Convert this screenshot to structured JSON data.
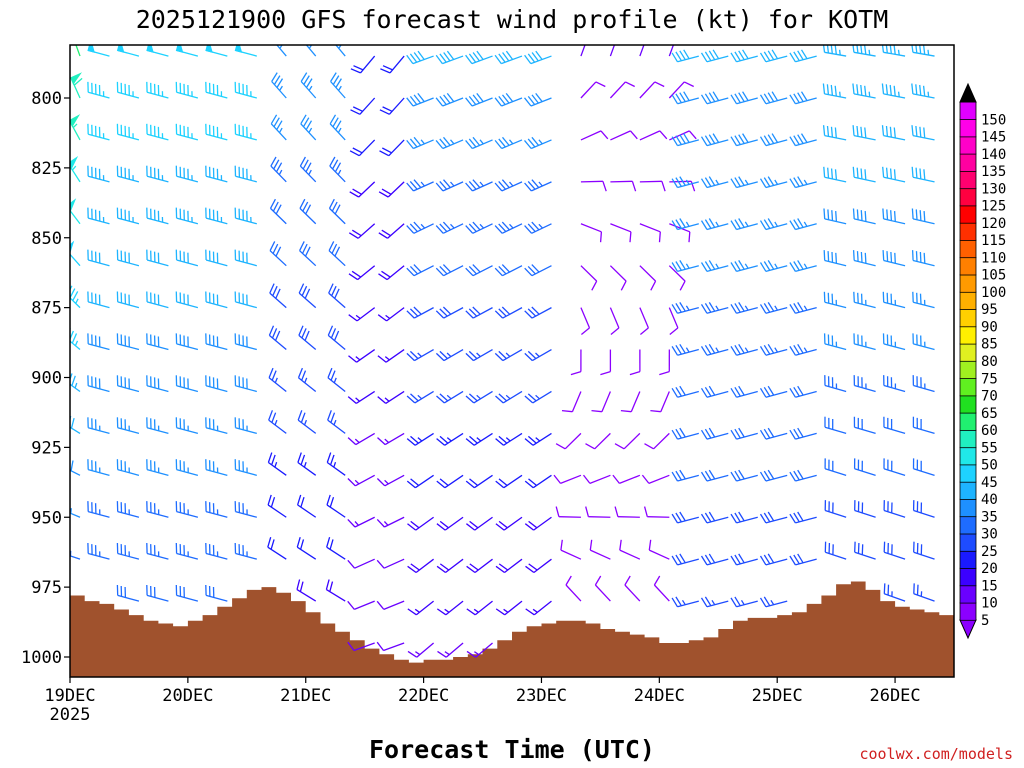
{
  "chart_data": {
    "type": "wind_barb_time_height",
    "title": "2025121900 GFS forecast wind profile (kt) for KOTM",
    "xlabel": "Forecast Time (UTC)",
    "ylabel": "",
    "credit": "coolwx.com/models",
    "x_ticks": [
      {
        "label": "19DEC",
        "sub": "2025",
        "hour": 0
      },
      {
        "label": "20DEC",
        "sub": "",
        "hour": 24
      },
      {
        "label": "21DEC",
        "sub": "",
        "hour": 48
      },
      {
        "label": "22DEC",
        "sub": "",
        "hour": 72
      },
      {
        "label": "23DEC",
        "sub": "",
        "hour": 96
      },
      {
        "label": "24DEC",
        "sub": "",
        "hour": 120
      },
      {
        "label": "25DEC",
        "sub": "",
        "hour": 144
      },
      {
        "label": "26DEC",
        "sub": "",
        "hour": 168
      }
    ],
    "xlim_hours": [
      0,
      180
    ],
    "y_ticks": [
      "800",
      "825",
      "850",
      "875",
      "900",
      "925",
      "950",
      "975",
      "1000"
    ],
    "ylim_hpa": [
      1007,
      782
    ],
    "pressure_levels": [
      785,
      800,
      815,
      830,
      845,
      860,
      875,
      890,
      905,
      920,
      935,
      950,
      965,
      980,
      995
    ],
    "barb_times_hours": [
      0,
      6,
      12,
      18,
      24,
      30,
      36,
      42,
      48,
      54,
      60,
      66,
      72,
      78,
      84,
      90,
      96,
      102,
      108,
      114,
      120,
      126,
      132,
      138,
      144,
      150,
      156,
      162,
      168,
      174
    ],
    "surface_pressure": {
      "hours": [
        0,
        3,
        6,
        9,
        12,
        15,
        18,
        21,
        24,
        27,
        30,
        33,
        36,
        39,
        42,
        45,
        48,
        51,
        54,
        57,
        60,
        63,
        66,
        69,
        72,
        75,
        78,
        81,
        84,
        87,
        90,
        93,
        96,
        99,
        102,
        105,
        108,
        111,
        114,
        117,
        120,
        123,
        126,
        129,
        132,
        135,
        138,
        141,
        144,
        147,
        150,
        153,
        156,
        159,
        162,
        165,
        168,
        171,
        174,
        177,
        180
      ],
      "hpa": [
        978,
        980,
        981,
        983,
        985,
        987,
        988,
        989,
        987,
        985,
        982,
        979,
        976,
        975,
        977,
        980,
        984,
        988,
        991,
        994,
        997,
        999,
        1001,
        1002,
        1001,
        1001,
        1000,
        999,
        997,
        994,
        991,
        989,
        988,
        987,
        987,
        988,
        990,
        991,
        992,
        993,
        995,
        995,
        994,
        993,
        990,
        987,
        986,
        986,
        985,
        984,
        981,
        978,
        974,
        973,
        976,
        980,
        982,
        983,
        984,
        985,
        985
      ]
    },
    "wind_regimes": [
      {
        "start_hour": 0,
        "end_hour": 4,
        "low_dir": 280,
        "low_speed": 28,
        "high_dir": 340,
        "high_speed": 62
      },
      {
        "start_hour": 4,
        "end_hour": 38,
        "low_dir": 285,
        "low_speed": 30,
        "high_dir": 285,
        "high_speed": 48
      },
      {
        "start_hour": 38,
        "end_hour": 60,
        "low_dir": 300,
        "low_speed": 18,
        "high_dir": 320,
        "high_speed": 38
      },
      {
        "start_hour": 60,
        "end_hour": 70,
        "low_dir": 250,
        "low_speed": 10,
        "high_dir": 220,
        "high_speed": 22
      },
      {
        "start_hour": 70,
        "end_hour": 100,
        "low_dir": 230,
        "low_speed": 14,
        "high_dir": 250,
        "high_speed": 40
      },
      {
        "start_hour": 100,
        "end_hour": 124,
        "low_dir": 340,
        "low_speed": 8,
        "high_dir": 20,
        "high_speed": 10
      },
      {
        "start_hour": 124,
        "end_hour": 156,
        "low_dir": 255,
        "low_speed": 26,
        "high_dir": 255,
        "high_speed": 40
      },
      {
        "start_hour": 156,
        "end_hour": 180,
        "low_dir": 290,
        "low_speed": 26,
        "high_dir": 280,
        "high_speed": 44
      }
    ],
    "colorbar": {
      "ticks": [
        5,
        10,
        15,
        20,
        25,
        30,
        35,
        40,
        45,
        50,
        55,
        60,
        65,
        70,
        75,
        80,
        85,
        90,
        95,
        100,
        105,
        110,
        115,
        120,
        125,
        130,
        135,
        140,
        145,
        150
      ],
      "colors": [
        "#8b00ff",
        "#6a00ff",
        "#3b00ff",
        "#1a1aff",
        "#1e4cff",
        "#1e6cff",
        "#1e90ff",
        "#1eb4ff",
        "#1ed2ff",
        "#20e8e8",
        "#20f0c0",
        "#20f070",
        "#20e020",
        "#60f020",
        "#a0f020",
        "#e0f020",
        "#fff000",
        "#ffd000",
        "#ffb000",
        "#ff9a00",
        "#ff8000",
        "#ff6000",
        "#ff3000",
        "#ff0000",
        "#ff0040",
        "#ff0070",
        "#ff00a0",
        "#ff00c8",
        "#ff00e8",
        "#e000ff"
      ]
    },
    "terrain_color": "#a0522d"
  }
}
